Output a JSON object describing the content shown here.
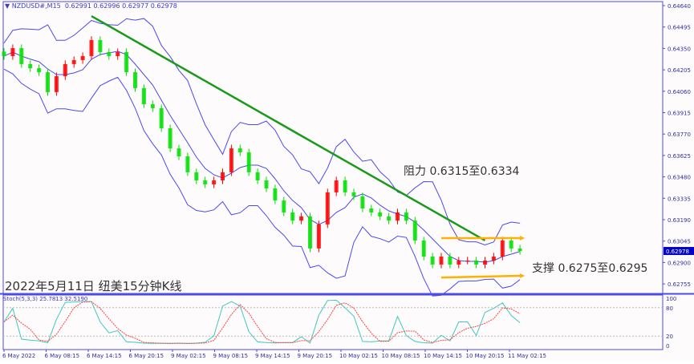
{
  "header": {
    "symbol": "NZDUSD#,M15",
    "ohlc": "0.62991 0.62996 0.62977 0.62978"
  },
  "title": "2022年5月11日 纽美15分钟K线",
  "annotations": {
    "resistance": "阻力 0.6315至0.6334",
    "support": "支撑 0.6275至0.6295"
  },
  "stoch": {
    "label": "Stoch(5,3,3) 25.7813 32.5190",
    "levels": [
      "100",
      "80",
      "20",
      "0"
    ]
  },
  "colors": {
    "bull": "#00e000",
    "bear": "#ff0000",
    "bands": "#4a4aee",
    "trend": "#1a9a1a",
    "range": "#ffb000",
    "stoch_main": "#40c8c0",
    "stoch_signal": "#ff4040",
    "axis": "#4a4aee",
    "price_tag": "#0000c8"
  },
  "chart_data": {
    "type": "candlestick",
    "symbol": "NZDUSD",
    "timeframe": "M15",
    "ylim": [
      0.627,
      0.6466
    ],
    "y_ticks": [
      "0.64640",
      "0.64495",
      "0.64350",
      "0.64205",
      "0.64060",
      "0.63915",
      "0.63770",
      "0.63625",
      "0.63480",
      "0.63335",
      "0.63190",
      "0.63045",
      "0.62900",
      "0.62755"
    ],
    "current_price": "0.62978",
    "x_ticks": [
      "6 May 2022",
      "6 May 08:15",
      "6 May 14:15",
      "6 May 20:15",
      "9 May 02:15",
      "9 May 08:15",
      "9 May 14:15",
      "9 May 20:15",
      "10 May 02:15",
      "10 May 08:15",
      "10 May 14:15",
      "10 May 20:15",
      "11 May 02:15"
    ],
    "closes": [
      0.64298,
      0.64352,
      0.64244,
      0.64216,
      0.64189,
      0.64054,
      0.64162,
      0.64244,
      0.64271,
      0.64298,
      0.64407,
      0.64325,
      0.64298,
      0.64325,
      0.64189,
      0.64081,
      0.63972,
      0.63945,
      0.63809,
      0.63673,
      0.63619,
      0.63511,
      0.63456,
      0.63429,
      0.63456,
      0.63511,
      0.63673,
      0.63646,
      0.63511,
      0.63456,
      0.63402,
      0.6332,
      0.63239,
      0.63184,
      0.63212,
      0.62995,
      0.63158,
      0.63375,
      0.63456,
      0.63375,
      0.63348,
      0.63266,
      0.63239,
      0.63212,
      0.63184,
      0.63239,
      0.63184,
      0.63049,
      0.6294,
      0.62886,
      0.6294,
      0.62886,
      0.62913,
      0.62913,
      0.62886,
      0.62913,
      0.6294,
      0.63049,
      0.62995,
      0.62978
    ],
    "indicators": [
      "Bollinger Bands",
      "Stochastic(5,3,3)"
    ],
    "trendline": {
      "from": [
        10,
        0.64569
      ],
      "to": [
        55,
        0.63049
      ]
    },
    "resistance_line": {
      "from": [
        50,
        0.63065
      ],
      "to": [
        59,
        0.63065
      ]
    },
    "support_line": {
      "from": [
        50,
        0.62798
      ],
      "to": [
        59,
        0.6281
      ]
    },
    "grid": false
  }
}
